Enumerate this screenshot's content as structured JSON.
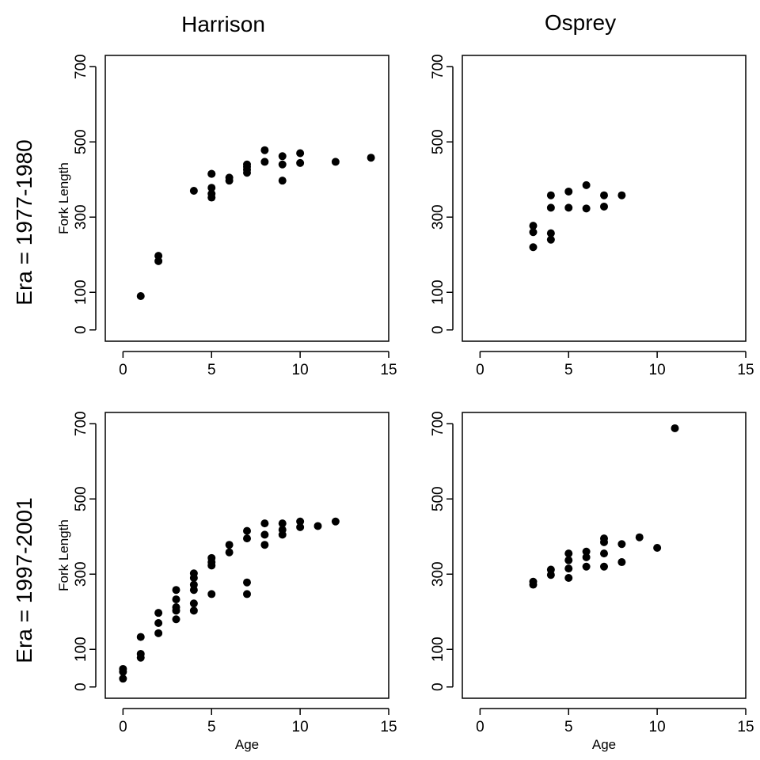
{
  "column_titles": [
    "Harrison",
    "Osprey"
  ],
  "row_titles": [
    "Era = 1977-1980",
    "Era = 1997-2001"
  ],
  "colors": {
    "point": "#000000",
    "axis": "#000000"
  },
  "chart_data": [
    {
      "type": "scatter",
      "title": "",
      "panel": "Harrison, Era = 1977-1980",
      "xlabel": "",
      "ylabel": "Fork Length",
      "xlim": [
        -1,
        15
      ],
      "ylim": [
        -30,
        730
      ],
      "xticks": [
        0,
        5,
        10,
        15
      ],
      "yticks": [
        0,
        100,
        300,
        500,
        700
      ],
      "x": [
        1,
        2,
        2,
        4,
        5,
        5,
        5,
        5,
        5,
        6,
        6,
        7,
        7,
        7,
        7,
        8,
        8,
        9,
        9,
        9,
        10,
        10,
        12,
        14
      ],
      "y": [
        90,
        197,
        183,
        370,
        352,
        362,
        378,
        415,
        415,
        397,
        405,
        418,
        426,
        434,
        440,
        478,
        447,
        462,
        440,
        397,
        470,
        444,
        447,
        458
      ]
    },
    {
      "type": "scatter",
      "title": "",
      "panel": "Osprey, Era = 1977-1980",
      "xlabel": "",
      "ylabel": "",
      "xlim": [
        -1,
        15
      ],
      "ylim": [
        -30,
        730
      ],
      "xticks": [
        0,
        5,
        10,
        15
      ],
      "yticks": [
        0,
        100,
        300,
        500,
        700
      ],
      "x": [
        3,
        3,
        3,
        4,
        4,
        4,
        4,
        5,
        5,
        6,
        6,
        7,
        7,
        8
      ],
      "y": [
        277,
        260,
        220,
        358,
        325,
        257,
        240,
        368,
        325,
        385,
        323,
        358,
        328,
        358
      ]
    },
    {
      "type": "scatter",
      "title": "",
      "panel": "Harrison, Era = 1997-2001",
      "xlabel": "Age",
      "ylabel": "Fork Length",
      "xlim": [
        -1,
        15
      ],
      "ylim": [
        -30,
        730
      ],
      "xticks": [
        0,
        5,
        10,
        15
      ],
      "yticks": [
        0,
        100,
        300,
        500,
        700
      ],
      "x": [
        0,
        0,
        0,
        1,
        1,
        1,
        2,
        2,
        2,
        3,
        3,
        3,
        3,
        3,
        4,
        4,
        4,
        4,
        4,
        4,
        5,
        5,
        5,
        5,
        6,
        6,
        7,
        7,
        7,
        7,
        8,
        8,
        8,
        9,
        9,
        9,
        10,
        10,
        11,
        12
      ],
      "y": [
        48,
        40,
        22,
        133,
        88,
        78,
        197,
        170,
        143,
        258,
        233,
        212,
        203,
        180,
        302,
        290,
        272,
        258,
        222,
        203,
        343,
        332,
        323,
        247,
        378,
        358,
        415,
        395,
        278,
        247,
        435,
        405,
        378,
        435,
        418,
        405,
        440,
        425,
        428,
        440
      ]
    },
    {
      "type": "scatter",
      "title": "",
      "panel": "Osprey, Era = 1997-2001",
      "xlabel": "Age",
      "ylabel": "",
      "xlim": [
        -1,
        15
      ],
      "ylim": [
        -30,
        730
      ],
      "xticks": [
        0,
        5,
        10,
        15
      ],
      "yticks": [
        0,
        100,
        300,
        500,
        700
      ],
      "x": [
        3,
        3,
        4,
        4,
        5,
        5,
        5,
        5,
        6,
        6,
        6,
        7,
        7,
        7,
        7,
        8,
        8,
        9,
        10,
        11
      ],
      "y": [
        280,
        272,
        312,
        298,
        355,
        337,
        315,
        290,
        360,
        345,
        320,
        395,
        385,
        355,
        320,
        380,
        332,
        398,
        370,
        688
      ]
    }
  ]
}
